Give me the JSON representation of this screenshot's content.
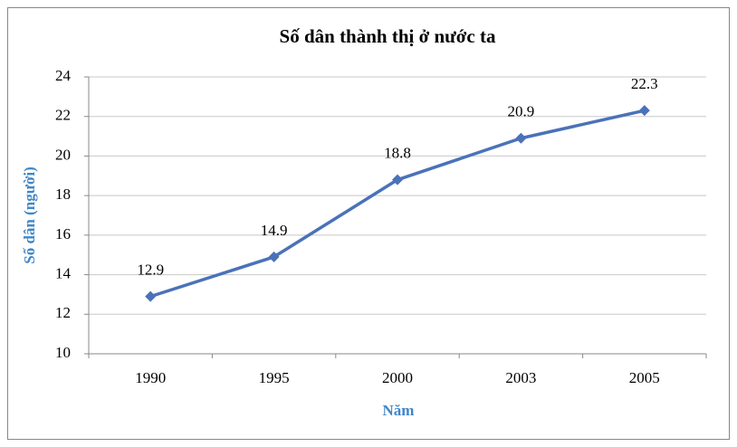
{
  "chart_data": {
    "type": "line",
    "title": "Số dân thành thị ở nước ta",
    "x_label": "Năm",
    "y_label": "Số dân (người)",
    "categories": [
      "1990",
      "1995",
      "2000",
      "2003",
      "2005"
    ],
    "values": [
      12.9,
      14.9,
      18.8,
      20.9,
      22.3
    ],
    "color": "#4a72b8",
    "ylim": [
      10,
      24
    ],
    "yticks": [
      10,
      12,
      14,
      16,
      18,
      20,
      22,
      24
    ],
    "grid": true
  }
}
